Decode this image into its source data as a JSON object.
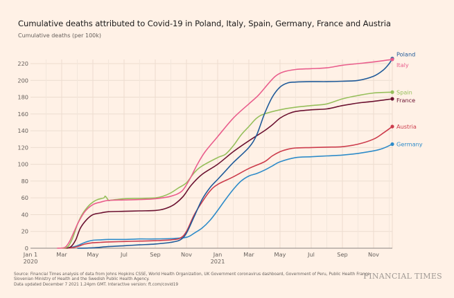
{
  "header": {
    "title": "Cumulative deaths attributed to Covid-19 in Poland, Italy, Spain, Germany, France and Austria",
    "subtitle": "Cumulative deaths (per 100k)"
  },
  "footer": {
    "source_line1": "Source: Financial Times analysis of data from Johns Hopkins CSSE, World Health Organization, UK Government coronavirus dashboard, Government of Peru, Public Health France,",
    "source_line2": "Slovenian Ministry of Health and the Swedish Public Health Agency.",
    "source_line3": "Data updated December 7 2021 1.24pm GMT. Interactive version: ft.com/covid19",
    "brand": "FINANCIAL TIMES"
  },
  "chart_data": {
    "type": "line",
    "title": "Cumulative deaths attributed to Covid-19 in Poland, Italy, Spain, Germany, France and Austria",
    "ylabel": "Cumulative deaths (per 100k)",
    "xlabel": "",
    "x_unit": "months since Jan 1 2020",
    "xlim": [
      0,
      23.2
    ],
    "ylim": [
      0,
      225
    ],
    "grid": true,
    "legend": "right-end labels",
    "x_ticks": [
      {
        "x": 0,
        "label": "Jan 1",
        "sub": "2020"
      },
      {
        "x": 2,
        "label": "Mar",
        "sub": ""
      },
      {
        "x": 4,
        "label": "May",
        "sub": ""
      },
      {
        "x": 6,
        "label": "Jul",
        "sub": ""
      },
      {
        "x": 8,
        "label": "Sep",
        "sub": ""
      },
      {
        "x": 10,
        "label": "Nov",
        "sub": ""
      },
      {
        "x": 12,
        "label": "Jan",
        "sub": "2021"
      },
      {
        "x": 14,
        "label": "Mar",
        "sub": ""
      },
      {
        "x": 16,
        "label": "May",
        "sub": ""
      },
      {
        "x": 18,
        "label": "Jul",
        "sub": ""
      },
      {
        "x": 20,
        "label": "Sep",
        "sub": ""
      },
      {
        "x": 22,
        "label": "Nov",
        "sub": ""
      }
    ],
    "y_ticks": [
      0,
      20,
      40,
      60,
      80,
      100,
      120,
      140,
      160,
      180,
      200,
      220
    ],
    "series": [
      {
        "name": "Italy",
        "color": "#e95d8c",
        "label_offset": 8,
        "x": [
          1.7,
          2.2,
          2.5,
          2.8,
          3.1,
          3.5,
          4.0,
          4.5,
          5.0,
          6.0,
          7.0,
          8.0,
          9.0,
          9.7,
          10.2,
          10.7,
          11.2,
          12.0,
          13.0,
          14.0,
          14.6,
          15.2,
          15.7,
          16.2,
          17.0,
          18.0,
          19.0,
          20.0,
          21.0,
          22.0,
          23.2
        ],
        "values": [
          0,
          1,
          8,
          20,
          32,
          44,
          52,
          55,
          57,
          57.5,
          58,
          59,
          62,
          68,
          82,
          100,
          115,
          133,
          155,
          172,
          182,
          195,
          205,
          210,
          213,
          214,
          215,
          218,
          220,
          222,
          225
        ]
      },
      {
        "name": "Poland",
        "color": "#1f5a99",
        "label_offset": -6,
        "x": [
          3.0,
          4.0,
          5.0,
          6.0,
          7.0,
          8.0,
          9.0,
          9.6,
          10.0,
          10.5,
          11.0,
          11.5,
          12.0,
          12.5,
          13.0,
          14.0,
          14.5,
          15.0,
          15.5,
          16.0,
          16.5,
          17.0,
          18.0,
          19.0,
          20.0,
          21.0,
          22.0,
          22.6,
          23.0,
          23.2
        ],
        "values": [
          0,
          0.5,
          2,
          3,
          4,
          5,
          7,
          10,
          18,
          38,
          58,
          72,
          82,
          92,
          102,
          120,
          135,
          160,
          180,
          192,
          197,
          198,
          198.5,
          198.5,
          199,
          200,
          205,
          212,
          220,
          226
        ]
      },
      {
        "name": "Spain",
        "color": "#96bf5b",
        "label_offset": 0,
        "x": [
          2.0,
          2.4,
          2.7,
          3.0,
          3.3,
          3.7,
          4.0,
          4.3,
          4.7,
          4.8,
          5.0,
          5.1,
          5.5,
          6.0,
          7.0,
          8.0,
          8.5,
          9.0,
          9.5,
          10.0,
          10.5,
          11.0,
          12.0,
          12.5,
          13.0,
          13.5,
          14.0,
          14.5,
          15.0,
          16.0,
          17.0,
          18.0,
          19.0,
          20.0,
          21.0,
          22.0,
          23.2
        ],
        "values": [
          0,
          2,
          12,
          28,
          40,
          50,
          55,
          58,
          60,
          62,
          57,
          57,
          58,
          59,
          59.5,
          60,
          62,
          66,
          72,
          78,
          90,
          98,
          108,
          112,
          122,
          135,
          145,
          155,
          160,
          165,
          168,
          170,
          172,
          178,
          182,
          185,
          186
        ]
      },
      {
        "name": "France",
        "color": "#6b1130",
        "label_offset": 2,
        "x": [
          2.3,
          2.6,
          2.9,
          3.2,
          3.6,
          4.0,
          4.5,
          5.0,
          6.0,
          7.0,
          8.0,
          8.6,
          9.2,
          9.8,
          10.3,
          11.0,
          12.0,
          13.0,
          14.0,
          15.0,
          15.5,
          16.0,
          16.5,
          17.0,
          18.0,
          19.0,
          20.0,
          21.0,
          22.0,
          23.2
        ],
        "values": [
          0,
          2,
          10,
          24,
          34,
          40,
          42,
          43.5,
          44,
          44.5,
          45,
          47,
          52,
          62,
          75,
          88,
          100,
          115,
          128,
          140,
          147,
          155,
          160,
          163,
          165,
          166,
          170,
          173,
          175,
          178
        ]
      },
      {
        "name": "Austria",
        "color": "#cc3b4b",
        "label_offset": 0,
        "x": [
          2.1,
          2.6,
          3.0,
          3.5,
          4.0,
          4.5,
          5.0,
          6.0,
          7.0,
          8.0,
          9.0,
          9.6,
          10.0,
          10.5,
          11.0,
          11.5,
          12.0,
          13.0,
          14.0,
          15.0,
          15.5,
          16.0,
          16.5,
          17.0,
          18.0,
          19.0,
          20.0,
          21.0,
          22.0,
          22.6,
          23.2
        ],
        "values": [
          0,
          0.5,
          2,
          5,
          6.5,
          7,
          7.5,
          8,
          8.5,
          9,
          10,
          12,
          20,
          40,
          55,
          68,
          76,
          85,
          95,
          103,
          110,
          115,
          118,
          119.5,
          120,
          120.5,
          121,
          124,
          130,
          137,
          145
        ]
      },
      {
        "name": "Germany",
        "color": "#2d8bc9",
        "label_offset": 0,
        "x": [
          2.2,
          2.6,
          3.0,
          3.5,
          4.0,
          4.5,
          5.0,
          6.0,
          7.0,
          8.0,
          9.0,
          10.0,
          10.5,
          11.0,
          11.5,
          12.0,
          12.5,
          13.0,
          13.5,
          14.0,
          14.5,
          15.0,
          15.5,
          16.0,
          17.0,
          18.0,
          19.0,
          20.0,
          21.0,
          22.0,
          22.6,
          23.2
        ],
        "values": [
          0,
          1,
          3,
          7,
          9.5,
          10,
          10.5,
          10.5,
          11,
          11,
          11.5,
          13,
          18,
          24,
          33,
          45,
          58,
          70,
          80,
          86,
          89,
          93,
          98,
          103,
          108,
          109,
          110,
          111,
          113,
          116,
          119,
          124
        ]
      }
    ]
  }
}
